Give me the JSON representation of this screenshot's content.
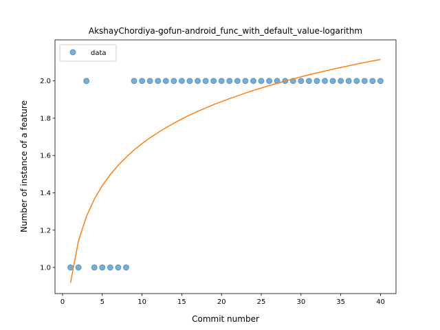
{
  "chart_data": {
    "type": "scatter",
    "title": "AkshayChordiya-gofun-android_func_with_default_value-logarithm",
    "xlabel": "Commit number",
    "ylabel": "Number of instance of a feature",
    "xlim": [
      -0.95,
      41.95
    ],
    "ylim": [
      0.86,
      2.22
    ],
    "xticks": [
      0,
      5,
      10,
      15,
      20,
      25,
      30,
      35,
      40
    ],
    "yticks": [
      1.0,
      1.2,
      1.4,
      1.6,
      1.8,
      2.0
    ],
    "xtick_labels": [
      "0",
      "5",
      "10",
      "15",
      "20",
      "25",
      "30",
      "35",
      "40"
    ],
    "ytick_labels": [
      "1.0",
      "1.2",
      "1.4",
      "1.6",
      "1.8",
      "2.0"
    ],
    "legend": {
      "position": "upper-left",
      "entries": [
        "data"
      ]
    },
    "grid": false,
    "series": [
      {
        "name": "data",
        "kind": "scatter",
        "color": "#1f77b4",
        "x": [
          1,
          2,
          3,
          4,
          5,
          6,
          7,
          8,
          9,
          10,
          11,
          12,
          13,
          14,
          15,
          16,
          17,
          18,
          19,
          20,
          21,
          22,
          23,
          24,
          25,
          26,
          27,
          28,
          29,
          30,
          31,
          32,
          33,
          34,
          35,
          36,
          37,
          38,
          39,
          40
        ],
        "y": [
          1,
          1,
          2,
          1,
          1,
          1,
          1,
          1,
          2,
          2,
          2,
          2,
          2,
          2,
          2,
          2,
          2,
          2,
          2,
          2,
          2,
          2,
          2,
          2,
          2,
          2,
          2,
          2,
          2,
          2,
          2,
          2,
          2,
          2,
          2,
          2,
          2,
          2,
          2,
          2
        ]
      },
      {
        "kind": "line",
        "color": "#ff7f0e",
        "x": [
          1,
          2,
          3,
          4,
          5,
          6,
          7,
          8,
          9,
          10,
          11,
          12,
          13,
          14,
          15,
          16,
          17,
          18,
          19,
          20,
          21,
          22,
          23,
          24,
          25,
          26,
          27,
          28,
          29,
          30,
          31,
          32,
          33,
          34,
          35,
          36,
          37,
          38,
          39,
          40
        ],
        "y": [
          0.917,
          1.142,
          1.273,
          1.367,
          1.439,
          1.498,
          1.548,
          1.591,
          1.63,
          1.664,
          1.695,
          1.723,
          1.749,
          1.773,
          1.796,
          1.817,
          1.837,
          1.855,
          1.873,
          1.889,
          1.905,
          1.92,
          1.935,
          1.949,
          1.962,
          1.975,
          1.987,
          1.999,
          2.011,
          2.022,
          2.033,
          2.043,
          2.053,
          2.063,
          2.072,
          2.081,
          2.09,
          2.099,
          2.107,
          2.115
        ]
      }
    ]
  }
}
